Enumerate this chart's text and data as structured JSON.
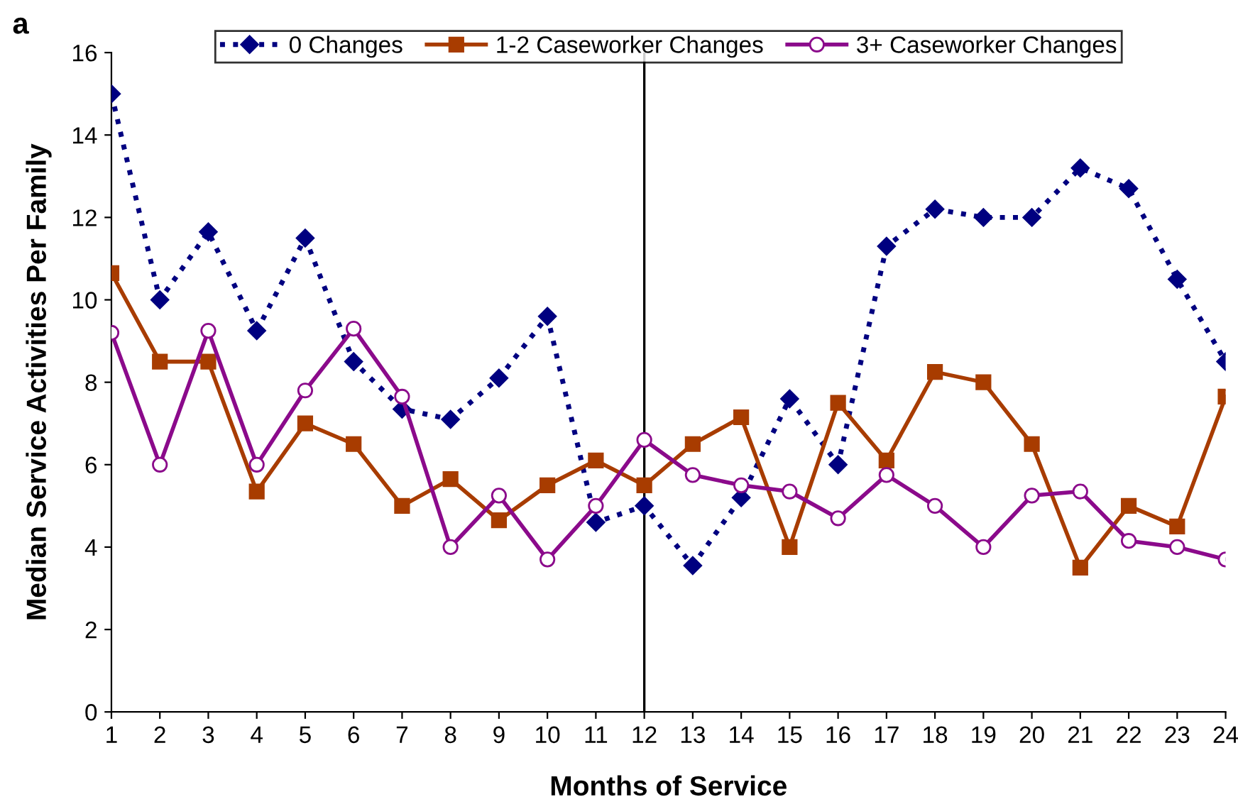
{
  "chart_data": {
    "type": "line",
    "xlabel": "Months of Service",
    "ylabel": "Median Service Activities Per Family",
    "annotations": [
      "a"
    ],
    "x": [
      1,
      2,
      3,
      4,
      5,
      6,
      7,
      8,
      9,
      10,
      11,
      12,
      13,
      14,
      15,
      16,
      17,
      18,
      19,
      20,
      21,
      22,
      23,
      24
    ],
    "xlim": [
      1,
      24
    ],
    "xticks": [
      1,
      2,
      3,
      4,
      5,
      6,
      7,
      8,
      9,
      10,
      11,
      12,
      13,
      14,
      15,
      16,
      17,
      18,
      19,
      20,
      21,
      22,
      23,
      24
    ],
    "ylim": [
      0,
      16
    ],
    "yticks": [
      0,
      2,
      4,
      6,
      8,
      10,
      12,
      14,
      16
    ],
    "grid": false,
    "legend": "top",
    "ref_lines": [
      {
        "axis": "x",
        "value": 12,
        "color": "#000000",
        "line_style": "solid"
      }
    ],
    "series": [
      {
        "name": "0 Changes",
        "color": "#000080",
        "marker": "diamond",
        "line_style": "dotted",
        "values": [
          15,
          10,
          11.65,
          9.25,
          11.5,
          8.5,
          7.35,
          7.1,
          8.1,
          9.6,
          4.6,
          5,
          3.55,
          5.2,
          7.6,
          6,
          11.3,
          12.2,
          12,
          12,
          13.2,
          12.7,
          10.5,
          8.5
        ]
      },
      {
        "name": "1-2 Caseworker Changes",
        "color": "#a83c00",
        "marker": "square",
        "line_style": "solid",
        "values": [
          10.65,
          8.5,
          8.5,
          5.35,
          7,
          6.5,
          5,
          5.65,
          4.65,
          5.5,
          6.1,
          5.5,
          6.5,
          7.15,
          4,
          7.5,
          6.1,
          8.25,
          8,
          6.5,
          3.5,
          5,
          4.5,
          7.65
        ]
      },
      {
        "name": "3+ Caseworker Changes",
        "color": "#8b0a8b",
        "marker": "circle",
        "line_style": "solid",
        "values": [
          9.2,
          6,
          9.25,
          6,
          7.8,
          9.3,
          7.65,
          4,
          5.25,
          3.7,
          5,
          6.6,
          5.75,
          5.5,
          5.35,
          4.7,
          5.75,
          5,
          4,
          5.25,
          5.35,
          4.15,
          4,
          3.7
        ]
      }
    ]
  }
}
